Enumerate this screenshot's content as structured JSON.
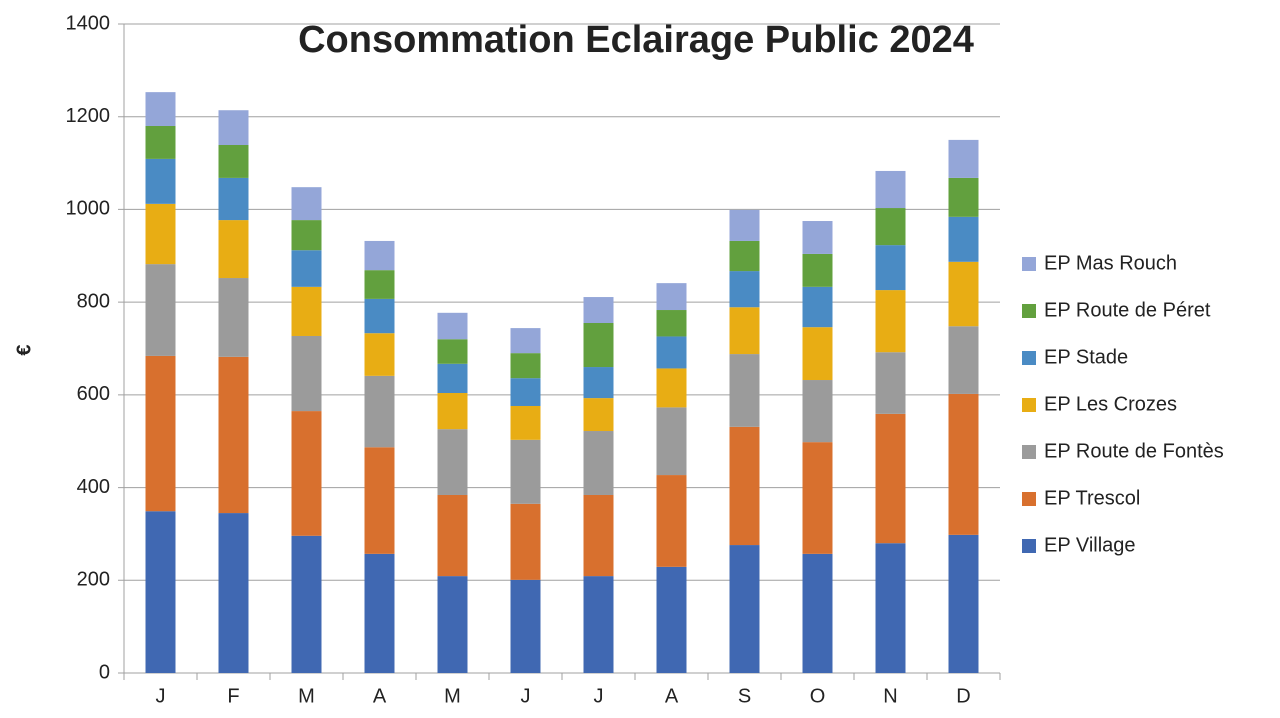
{
  "chart_data": {
    "type": "stacked_bar",
    "title": "Consommation Eclairage Public 2024",
    "y_label": "€",
    "categories": [
      "J",
      "F",
      "M",
      "A",
      "M",
      "J",
      "J",
      "A",
      "S",
      "O",
      "N",
      "D"
    ],
    "series": [
      {
        "name": "EP Village",
        "color": "#4068b2",
        "values": [
          349,
          345,
          296,
          257,
          209,
          201,
          209,
          229,
          276,
          257,
          280,
          298
        ]
      },
      {
        "name": "EP Trescol",
        "color": "#d8702e",
        "values": [
          335,
          337,
          269,
          230,
          175,
          164,
          175,
          198,
          255,
          241,
          279,
          304
        ]
      },
      {
        "name": "EP Route de Fontès",
        "color": "#9b9b9b",
        "values": [
          198,
          170,
          162,
          154,
          142,
          138,
          138,
          146,
          157,
          134,
          133,
          146
        ]
      },
      {
        "name": "EP Les Crozes",
        "color": "#e8ad14",
        "values": [
          130,
          125,
          106,
          92,
          78,
          73,
          71,
          84,
          101,
          114,
          134,
          139
        ]
      },
      {
        "name": "EP Stade",
        "color": "#4a8bc4",
        "values": [
          97,
          91,
          79,
          74,
          63,
          60,
          67,
          69,
          78,
          87,
          97,
          97
        ]
      },
      {
        "name": "EP Route de Péret",
        "color": "#62a03e",
        "values": [
          71,
          71,
          65,
          62,
          53,
          54,
          95,
          57,
          65,
          71,
          80,
          84
        ]
      },
      {
        "name": "EP Mas Rouch",
        "color": "#94a6d8",
        "values": [
          73,
          75,
          71,
          63,
          57,
          54,
          56,
          58,
          67,
          71,
          80,
          82
        ]
      }
    ],
    "ylim": [
      0,
      1400
    ],
    "yticks": [
      0,
      200,
      400,
      600,
      800,
      1000,
      1200,
      1400
    ],
    "grid": true,
    "legend": "right"
  }
}
